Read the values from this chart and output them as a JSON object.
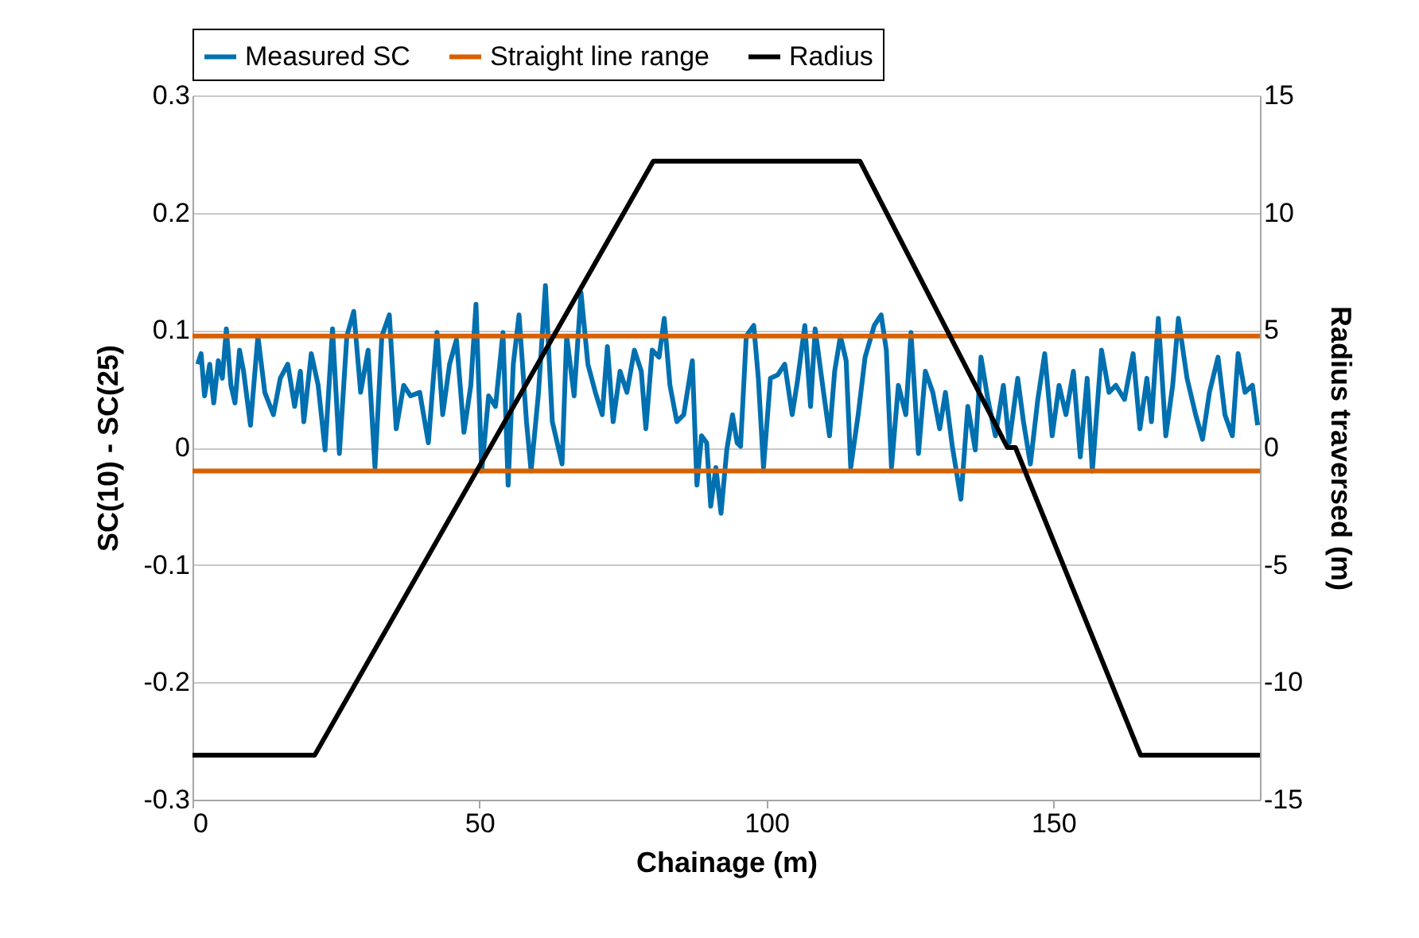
{
  "chart_data": {
    "type": "line",
    "xlabel": "Chainage (m)",
    "ylabel": "SC(10) - SC(25)",
    "y2label": "Radius traversed (m)",
    "xlim": [
      0,
      186
    ],
    "xticks": [
      0,
      50,
      100,
      150
    ],
    "ylim": [
      -0.3,
      0.3
    ],
    "yticks": [
      {
        "value": -0.3,
        "label": "-0.3"
      },
      {
        "value": -0.2,
        "label": "-0.2"
      },
      {
        "value": -0.1,
        "label": "-0.1"
      },
      {
        "value": 0,
        "label": "0"
      },
      {
        "value": 0.1,
        "label": "0.1"
      },
      {
        "value": 0.2,
        "label": "0.2"
      },
      {
        "value": 0.3,
        "label": "0.3"
      }
    ],
    "y2lim": [
      -15,
      15
    ],
    "y2ticks": [
      -15,
      -10,
      -5,
      0,
      5,
      10,
      15
    ],
    "grid": "y",
    "legend": "top",
    "series": [
      {
        "name": "Measured SC",
        "color": "#0070b0",
        "x": [
          0.9,
          1.5,
          2.1,
          3.0,
          3.7,
          4.5,
          5.2,
          5.9,
          6.7,
          7.4,
          8.2,
          8.9,
          10.1,
          11.4,
          12.6,
          14.1,
          15.3,
          16.6,
          17.8,
          18.8,
          19.4,
          20.7,
          21.9,
          23.1,
          24.4,
          25.6,
          26.9,
          28.1,
          29.3,
          30.6,
          31.8,
          33.0,
          34.3,
          35.5,
          36.8,
          38.0,
          39.6,
          41.1,
          42.6,
          43.6,
          44.8,
          46.0,
          47.3,
          48.5,
          49.4,
          50.4,
          51.6,
          52.8,
          54.1,
          55.0,
          55.9,
          56.9,
          58.2,
          59.0,
          60.3,
          61.5,
          62.7,
          64.4,
          65.2,
          66.5,
          67.7,
          68.9,
          70.2,
          71.4,
          72.3,
          73.3,
          74.5,
          75.7,
          77.0,
          78.2,
          79.0,
          80.1,
          81.3,
          82.2,
          83.2,
          84.4,
          85.6,
          87.1,
          87.9,
          88.7,
          89.6,
          90.3,
          91.2,
          92.1,
          93.1,
          94.1,
          94.9,
          95.5,
          96.5,
          97.8,
          98.6,
          99.5,
          100.7,
          102.0,
          103.2,
          104.5,
          105.4,
          106.7,
          107.7,
          108.5,
          109.8,
          111.0,
          111.9,
          112.9,
          113.9,
          114.7,
          116.0,
          117.2,
          118.8,
          120.0,
          120.9,
          121.8,
          123.0,
          124.3,
          125.2,
          126.5,
          127.7,
          129.0,
          130.2,
          131.2,
          132.4,
          133.9,
          135.1,
          136.4,
          137.4,
          138.6,
          139.9,
          141.3,
          142.3,
          143.8,
          144.8,
          146.0,
          147.3,
          148.5,
          149.8,
          151.0,
          152.2,
          153.5,
          154.7,
          155.9,
          156.8,
          158.4,
          159.7,
          160.9,
          162.4,
          163.9,
          165.1,
          166.3,
          167.1,
          168.3,
          169.6,
          170.8,
          171.8,
          173.3,
          174.8,
          176.0,
          177.2,
          178.7,
          179.9,
          181.2,
          182.2,
          183.4,
          184.7,
          185.6
        ],
        "values": [
          0.071,
          0.08,
          0.044,
          0.071,
          0.038,
          0.074,
          0.059,
          0.101,
          0.053,
          0.038,
          0.083,
          0.065,
          0.019,
          0.095,
          0.047,
          0.028,
          0.059,
          0.071,
          0.035,
          0.065,
          0.022,
          0.08,
          0.053,
          -0.002,
          0.101,
          -0.005,
          0.095,
          0.116,
          0.047,
          0.083,
          -0.017,
          0.095,
          0.113,
          0.016,
          0.053,
          0.044,
          0.047,
          0.004,
          0.098,
          0.028,
          0.071,
          0.092,
          0.013,
          0.053,
          0.122,
          -0.02,
          0.044,
          0.035,
          0.098,
          -0.032,
          0.071,
          0.113,
          0.022,
          -0.02,
          0.047,
          0.138,
          0.022,
          -0.014,
          0.095,
          0.044,
          0.132,
          0.071,
          0.047,
          0.028,
          0.086,
          0.022,
          0.065,
          0.047,
          0.083,
          0.065,
          0.016,
          0.083,
          0.077,
          0.11,
          0.053,
          0.022,
          0.028,
          0.074,
          -0.032,
          0.01,
          0.004,
          -0.05,
          -0.017,
          -0.056,
          -0.002,
          0.028,
          0.004,
          0.001,
          0.095,
          0.104,
          0.059,
          -0.017,
          0.059,
          0.062,
          0.071,
          0.028,
          0.056,
          0.104,
          0.035,
          0.101,
          0.053,
          0.01,
          0.065,
          0.095,
          0.074,
          -0.017,
          0.028,
          0.077,
          0.104,
          0.113,
          0.083,
          -0.017,
          0.053,
          0.028,
          0.098,
          -0.005,
          0.065,
          0.047,
          0.016,
          0.047,
          0.001,
          -0.044,
          0.035,
          -0.002,
          0.077,
          0.041,
          0.01,
          0.053,
          0.004,
          0.059,
          0.022,
          -0.014,
          0.041,
          0.08,
          0.01,
          0.053,
          0.028,
          0.065,
          -0.008,
          0.059,
          -0.02,
          0.083,
          0.047,
          0.053,
          0.041,
          0.08,
          0.016,
          0.059,
          0.022,
          0.11,
          0.01,
          0.053,
          0.11,
          0.059,
          0.028,
          0.007,
          0.047,
          0.077,
          0.028,
          0.01,
          0.08,
          0.047,
          0.053,
          0.019
        ]
      },
      {
        "name": "Straight line range",
        "color": "#d86000",
        "x": [
          0,
          186
        ],
        "values": [
          0.095,
          0.095
        ]
      },
      {
        "color": "#d86000",
        "x": [
          0,
          186
        ],
        "values": [
          -0.02,
          -0.02
        ]
      },
      {
        "name": "Radius",
        "color": "#000000",
        "axis": "y2",
        "x": [
          0,
          21.3,
          80.3,
          116.3,
          142,
          143.4,
          165.2,
          186
        ],
        "values": [
          -13.1,
          -13.1,
          12.2,
          12.2,
          0,
          0,
          -13.1,
          -13.1
        ]
      }
    ]
  }
}
